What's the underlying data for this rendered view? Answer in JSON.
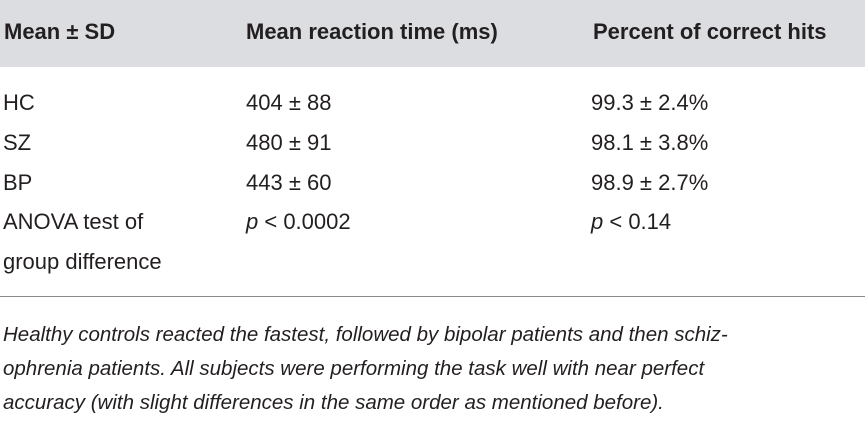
{
  "table": {
    "headers": [
      "Mean ± SD",
      "Mean reaction time (ms)",
      "Percent of correct hits"
    ],
    "rows": [
      {
        "label": "HC",
        "reaction_time": "404 ± 88",
        "correct_hits": "99.3 ± 2.4%"
      },
      {
        "label": "SZ",
        "reaction_time": "480 ± 91",
        "correct_hits": "98.1 ± 3.8%"
      },
      {
        "label": "BP",
        "reaction_time": "443 ± 60",
        "correct_hits": "98.9 ± 2.7%"
      },
      {
        "label_line1": "ANOVA test of",
        "label_line2": "group difference",
        "reaction_time_p": "p",
        "reaction_time_rest": " < 0.0002",
        "correct_hits_p": "p",
        "correct_hits_rest": " < 0.14"
      }
    ]
  },
  "caption": {
    "line1": "Healthy controls reacted the fastest, followed by bipolar patients and then schiz-",
    "line2": "ophrenia patients. All subjects were performing the task well with near perfect",
    "line3": "accuracy (with slight differences in the same order as mentioned before)."
  }
}
